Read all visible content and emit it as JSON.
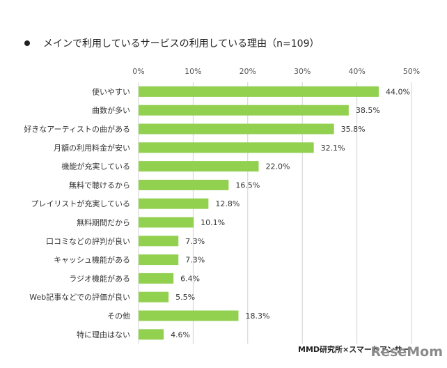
{
  "chart_data": {
    "type": "bar",
    "orientation": "horizontal",
    "title": "メインで利用しているサービスの利用している理由（n=109）",
    "categories": [
      "使いやすい",
      "曲数が多い",
      "好きなアーティストの曲がある",
      "月額の利用料金が安い",
      "機能が充実している",
      "無料で聴けるから",
      "プレイリストが充実している",
      "無料期間だから",
      "口コミなどの評判が良い",
      "キャッシュ機能がある",
      "ラジオ機能がある",
      "Web記事などでの評価が良い",
      "その他",
      "特に理由はない"
    ],
    "values": [
      44.0,
      38.5,
      35.8,
      32.1,
      22.0,
      16.5,
      12.8,
      10.1,
      7.3,
      7.3,
      6.4,
      5.5,
      18.3,
      4.6
    ],
    "value_labels": [
      "44.0%",
      "38.5%",
      "35.8%",
      "32.1%",
      "22.0%",
      "16.5%",
      "12.8%",
      "10.1%",
      "7.3%",
      "7.3%",
      "6.4%",
      "5.5%",
      "18.3%",
      "4.6%"
    ],
    "xlim": [
      0,
      50
    ],
    "xticks": [
      0,
      10,
      20,
      30,
      40,
      50
    ],
    "xtick_labels": [
      "0%",
      "10%",
      "20%",
      "30%",
      "40%",
      "50%"
    ],
    "xaxis_position": "top",
    "grid": true,
    "bar_color": "#92d050"
  },
  "source": "MMD研究所×スマートアンサー",
  "watermark": "ReseMom"
}
